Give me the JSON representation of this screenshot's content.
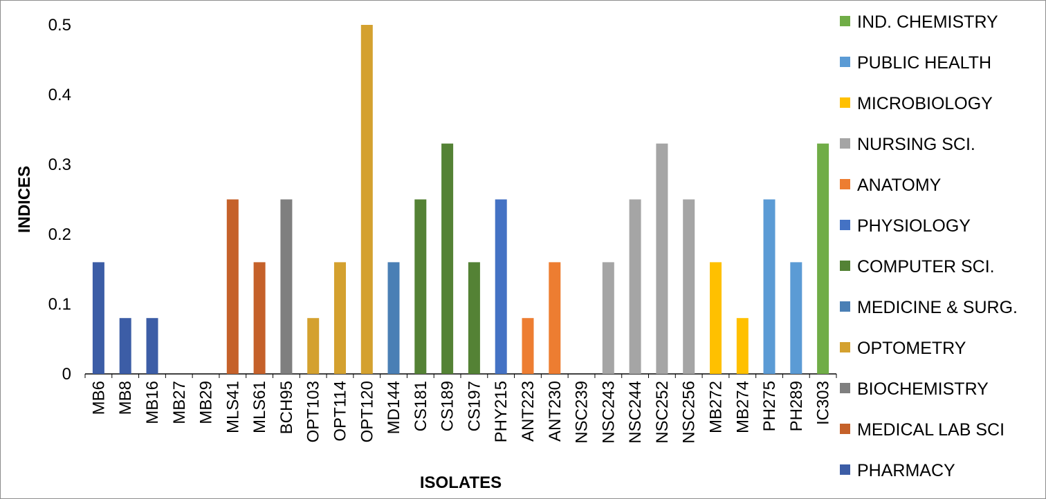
{
  "chart_data": {
    "type": "bar",
    "xlabel": "ISOLATES",
    "ylabel": "INDICES",
    "ylim": [
      0,
      0.5
    ],
    "yticks": [
      0,
      0.1,
      0.2,
      0.3,
      0.4,
      0.5
    ],
    "ytick_labels": [
      "0",
      "0.1",
      "0.2",
      "0.3",
      "0.4",
      "0.5"
    ],
    "grid": false,
    "legend_position": "right",
    "categories": [
      "MB6",
      "MB8",
      "MB16",
      "MB27",
      "MB29",
      "MLS41",
      "MLS61",
      "BCH95",
      "OPT103",
      "OPT114",
      "OPT120",
      "MD144",
      "CS181",
      "CS189",
      "CS197",
      "PHY215",
      "ANT223",
      "ANT230",
      "NSC239",
      "NSC243",
      "NSC244",
      "NSC252",
      "NSC256",
      "MB272",
      "MB274",
      "PH275",
      "PH289",
      "IC303"
    ],
    "values": [
      0.16,
      0.08,
      0.08,
      0,
      0,
      0.25,
      0.16,
      0.25,
      0.08,
      0.16,
      0.5,
      0.16,
      0.25,
      0.33,
      0.16,
      0.25,
      0.08,
      0.16,
      0,
      0.16,
      0.25,
      0.33,
      0.25,
      0.16,
      0.08,
      0.25,
      0.16,
      0.33
    ],
    "bar_groups": [
      "PHARMACY",
      "PHARMACY",
      "PHARMACY",
      "PHARMACY",
      "PHARMACY",
      "MEDICAL LAB SCI",
      "MEDICAL LAB SCI",
      "BIOCHEMISTRY",
      "OPTOMETRY",
      "OPTOMETRY",
      "OPTOMETRY",
      "MEDICINE & SURG.",
      "COMPUTER SCI.",
      "COMPUTER SCI.",
      "COMPUTER SCI.",
      "PHYSIOLOGY",
      "ANATOMY",
      "ANATOMY",
      "NURSING SCI.",
      "NURSING SCI.",
      "NURSING SCI.",
      "NURSING SCI.",
      "NURSING SCI.",
      "MICROBIOLOGY",
      "MICROBIOLOGY",
      "PUBLIC HEALTH",
      "PUBLIC HEALTH",
      "IND. CHEMISTRY"
    ],
    "legend": [
      {
        "name": "IND. CHEMISTRY",
        "color": "#70ad47"
      },
      {
        "name": "PUBLIC HEALTH",
        "color": "#5b9bd5"
      },
      {
        "name": "MICROBIOLOGY",
        "color": "#ffc000"
      },
      {
        "name": "NURSING SCI.",
        "color": "#a5a5a5"
      },
      {
        "name": "ANATOMY",
        "color": "#ed7d31"
      },
      {
        "name": "PHYSIOLOGY",
        "color": "#4472c4"
      },
      {
        "name": "COMPUTER SCI.",
        "color": "#548235"
      },
      {
        "name": "MEDICINE & SURG.",
        "color": "#4a7fb5"
      },
      {
        "name": "OPTOMETRY",
        "color": "#d4a12f"
      },
      {
        "name": "BIOCHEMISTRY",
        "color": "#7f7f7f"
      },
      {
        "name": "MEDICAL LAB SCI",
        "color": "#c5612a"
      },
      {
        "name": "PHARMACY",
        "color": "#3c5da6"
      }
    ]
  }
}
